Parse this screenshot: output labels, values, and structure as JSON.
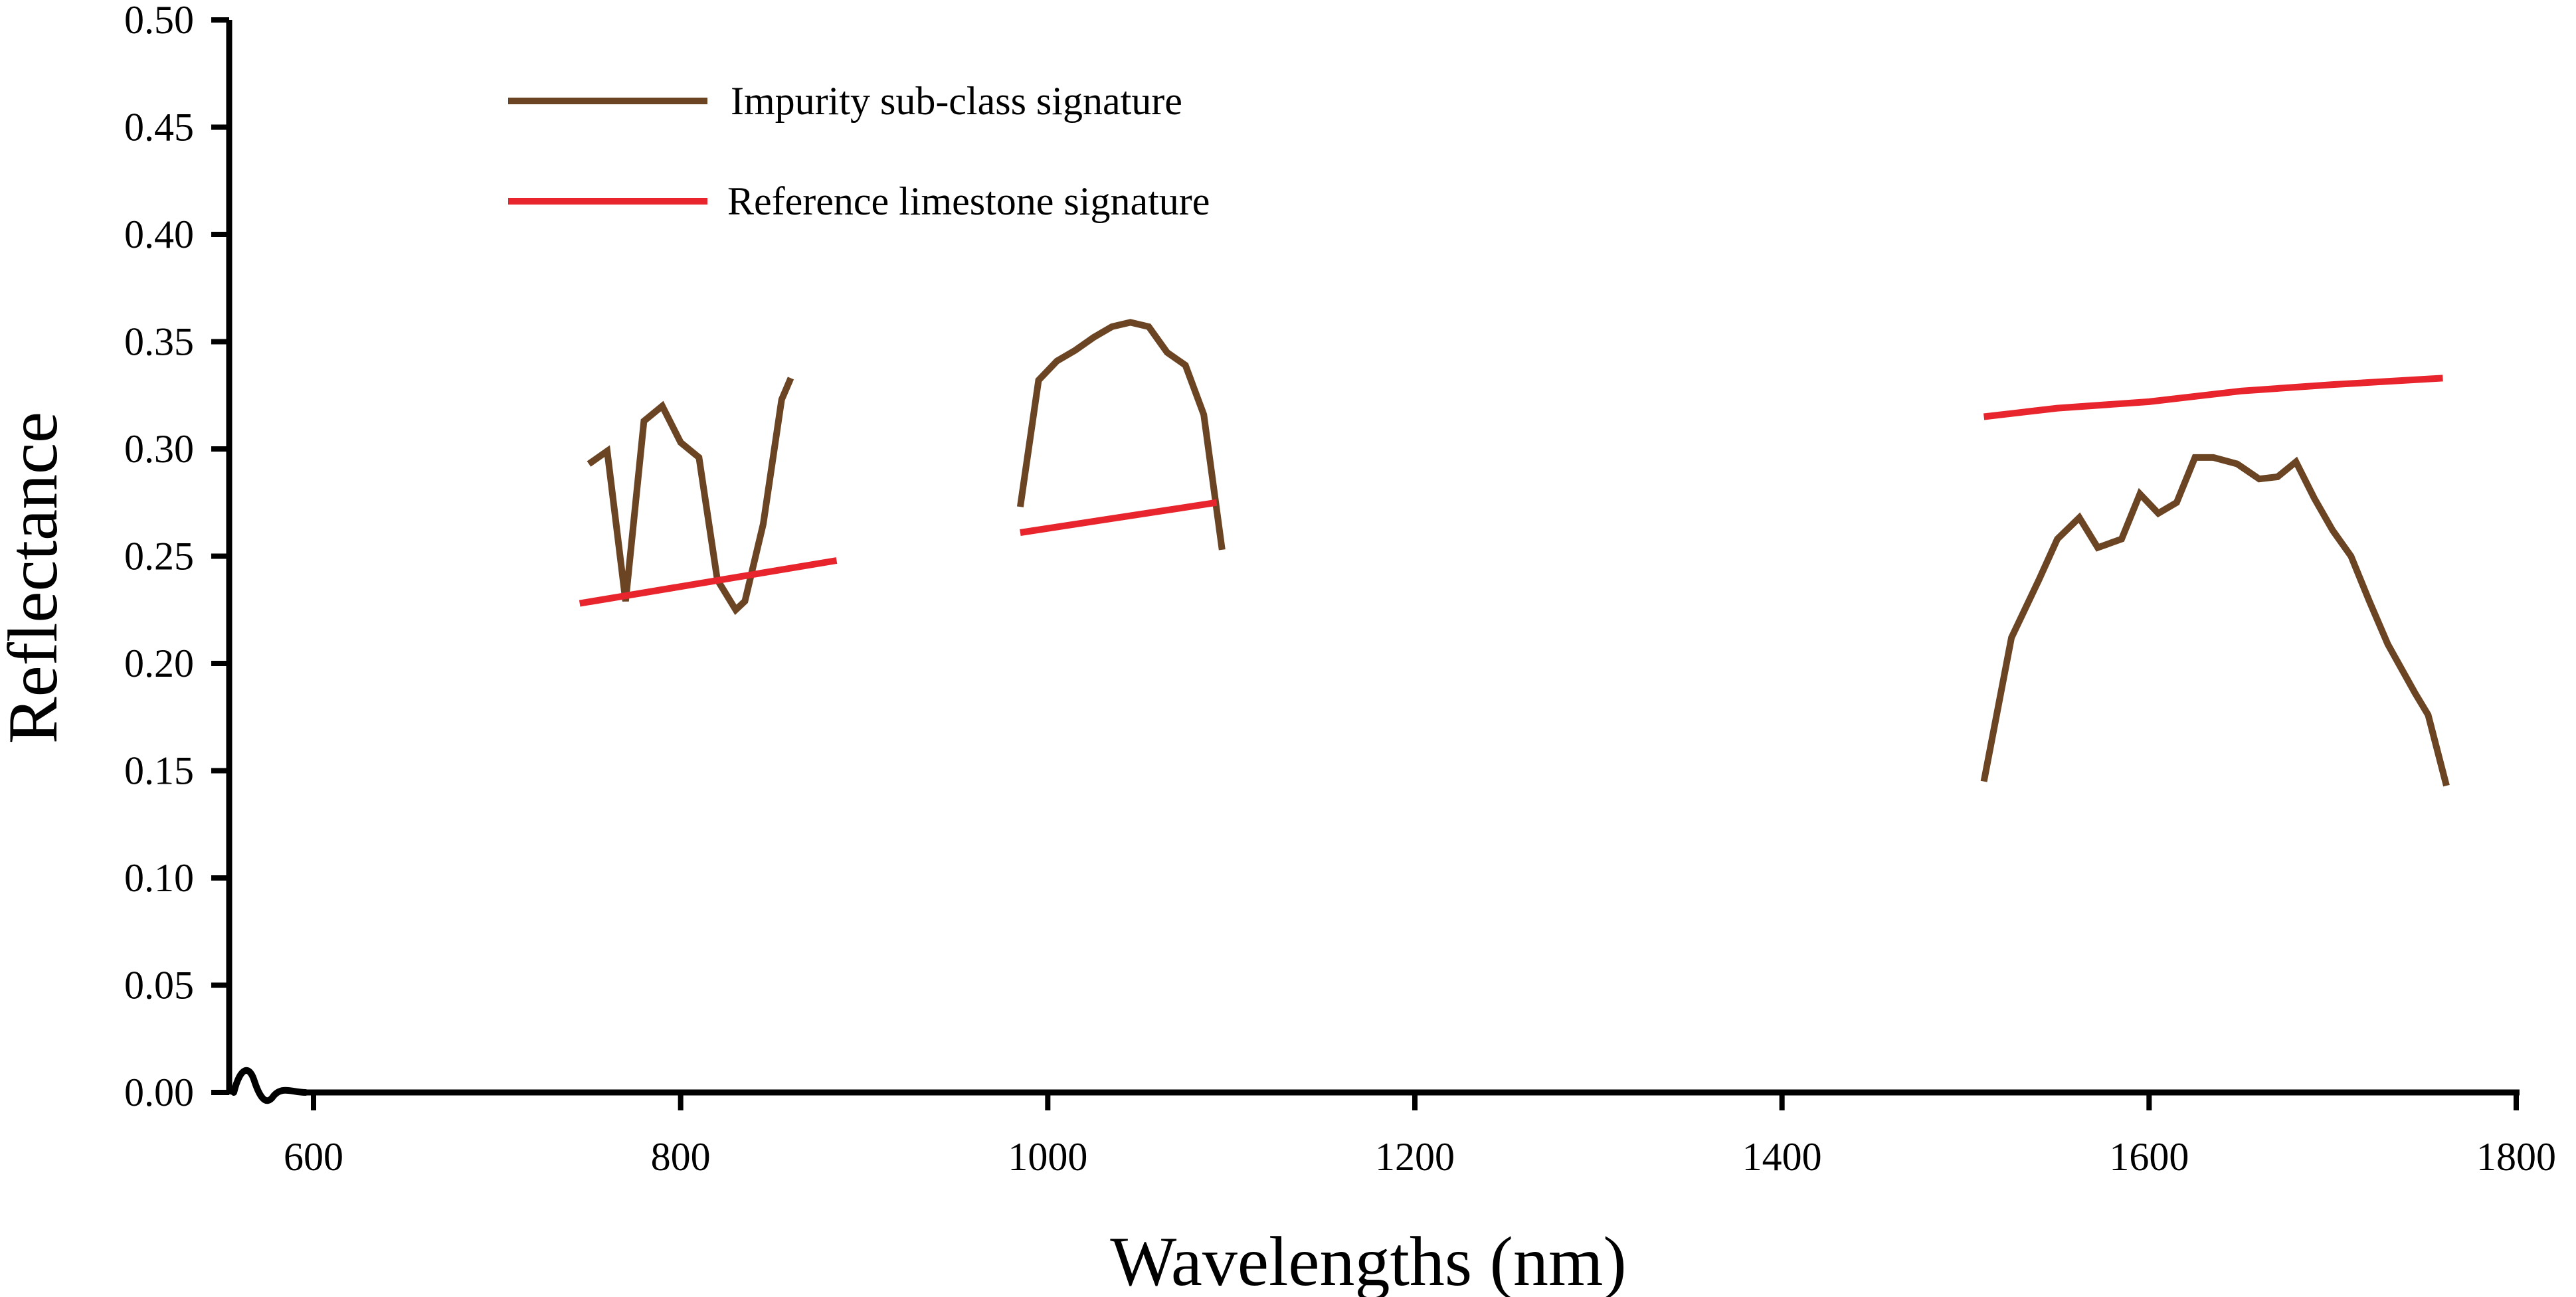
{
  "chart_data": {
    "type": "line",
    "title": "",
    "xlabel": "Wavelengths (nm)",
    "ylabel": "Reflectance",
    "xlim": [
      555,
      1800
    ],
    "ylim": [
      0,
      0.5
    ],
    "xticks": [
      600,
      800,
      1000,
      1200,
      1400,
      1600,
      1800
    ],
    "xtick_labels": [
      "600",
      "800",
      "1000",
      "1200",
      "1400",
      "1600",
      "1800"
    ],
    "yticks": [
      0,
      0.05,
      0.1,
      0.15,
      0.2,
      0.25,
      0.3,
      0.35,
      0.4,
      0.45,
      0.5
    ],
    "ytick_labels": [
      "0.00",
      "0.05",
      "0.10",
      "0.15",
      "0.20",
      "0.25",
      "0.30",
      "0.35",
      "0.40",
      "0.45",
      "0.50"
    ],
    "grid": false,
    "legend_position": "top-left",
    "series": [
      {
        "name": "Impurity sub-class signature",
        "color": "#6b4423",
        "segments": [
          [
            [
              750,
              0.293
            ],
            [
              760,
              0.299
            ],
            [
              770,
              0.229
            ],
            [
              780,
              0.313
            ],
            [
              790,
              0.32
            ],
            [
              800,
              0.303
            ],
            [
              810,
              0.296
            ],
            [
              820,
              0.239
            ],
            [
              830,
              0.225
            ],
            [
              835,
              0.229
            ],
            [
              845,
              0.265
            ],
            [
              855,
              0.323
            ],
            [
              860,
              0.333
            ]
          ],
          [
            [
              985,
              0.273
            ],
            [
              995,
              0.332
            ],
            [
              1005,
              0.341
            ],
            [
              1015,
              0.346
            ],
            [
              1025,
              0.352
            ],
            [
              1035,
              0.357
            ],
            [
              1045,
              0.359
            ],
            [
              1055,
              0.357
            ],
            [
              1065,
              0.345
            ],
            [
              1075,
              0.339
            ],
            [
              1085,
              0.316
            ],
            [
              1095,
              0.253
            ]
          ],
          [
            [
              1510,
              0.145
            ],
            [
              1525,
              0.212
            ],
            [
              1540,
              0.239
            ],
            [
              1550,
              0.258
            ],
            [
              1562,
              0.268
            ],
            [
              1572,
              0.254
            ],
            [
              1585,
              0.258
            ],
            [
              1595,
              0.279
            ],
            [
              1605,
              0.27
            ],
            [
              1615,
              0.275
            ],
            [
              1625,
              0.296
            ],
            [
              1635,
              0.296
            ],
            [
              1648,
              0.293
            ],
            [
              1660,
              0.286
            ],
            [
              1670,
              0.287
            ],
            [
              1680,
              0.294
            ],
            [
              1690,
              0.277
            ],
            [
              1700,
              0.262
            ],
            [
              1710,
              0.25
            ],
            [
              1720,
              0.229
            ],
            [
              1730,
              0.209
            ],
            [
              1745,
              0.186
            ],
            [
              1752,
              0.176
            ],
            [
              1762,
              0.143
            ]
          ]
        ]
      },
      {
        "name": "Reference limestone signature",
        "color": "#e8242d",
        "segments": [
          [
            [
              745,
              0.228
            ],
            [
              885,
              0.248
            ]
          ],
          [
            [
              985,
              0.261
            ],
            [
              1092,
              0.275
            ]
          ],
          [
            [
              1510,
              0.315
            ],
            [
              1550,
              0.319
            ],
            [
              1600,
              0.322
            ],
            [
              1650,
              0.327
            ],
            [
              1700,
              0.33
            ],
            [
              1760,
              0.333
            ]
          ]
        ]
      }
    ]
  }
}
